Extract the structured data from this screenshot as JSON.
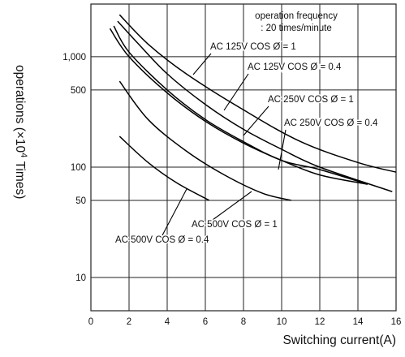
{
  "chart_data": {
    "type": "line",
    "title": "",
    "xlabel": "Switching current(A)",
    "ylabel_main": "operations (×10",
    "ylabel_exp": "4",
    "ylabel_tail": " Times)",
    "xlim": [
      0,
      16
    ],
    "ylim": [
      5,
      3000
    ],
    "yscale": "log",
    "x_ticks": [
      0,
      2,
      4,
      6,
      8,
      10,
      12,
      14,
      16
    ],
    "x_tick_labels": [
      "0",
      "2",
      "4",
      "6",
      "8",
      "10",
      "12",
      "14",
      "16"
    ],
    "y_ticks": [
      10,
      50,
      100,
      500,
      1000
    ],
    "y_tick_labels": [
      "10",
      "50",
      "100",
      "500",
      "1,000"
    ],
    "grid": true,
    "annotation": {
      "lines": [
        "operation frequency",
        ": 20 times/minute"
      ]
    },
    "series": [
      {
        "name": "AC 125V COS Ø = 1",
        "x": [
          1.5,
          3,
          5,
          8,
          11,
          14,
          16
        ],
        "y": [
          2400,
          1300,
          700,
          330,
          170,
          110,
          90
        ]
      },
      {
        "name": "AC 125V COS Ø = 0.4",
        "x": [
          1.4,
          2.5,
          4,
          6,
          8,
          10,
          12,
          15.8
        ],
        "y": [
          2100,
          1300,
          700,
          370,
          220,
          145,
          100,
          60
        ]
      },
      {
        "name": "AC 250V COS Ø = 1",
        "x": [
          1,
          2,
          4,
          6,
          8,
          10,
          12,
          14.5
        ],
        "y": [
          1800,
          1000,
          470,
          260,
          165,
          115,
          85,
          70
        ]
      },
      {
        "name": "AC 250V COS Ø = 0.4",
        "x": [
          1.2,
          2,
          4,
          6,
          8,
          10,
          12,
          14.5
        ],
        "y": [
          1900,
          1100,
          500,
          270,
          170,
          115,
          95,
          70
        ]
      },
      {
        "name": "AC 500V COS Ø = 1",
        "x": [
          1.5,
          3,
          5,
          7,
          9,
          10.5
        ],
        "y": [
          600,
          270,
          140,
          85,
          58,
          50
        ]
      },
      {
        "name": "AC 500V COS Ø = 0.4",
        "x": [
          1.5,
          3,
          4.5,
          6.2
        ],
        "y": [
          190,
          110,
          72,
          50
        ]
      }
    ],
    "series_labels": [
      {
        "text": "AC 125V COS Ø = 1"
      },
      {
        "text": "AC 125V COS Ø = 0.4"
      },
      {
        "text": "AC 250V COS Ø = 1"
      },
      {
        "text": "AC 250V COS Ø = 0.4"
      },
      {
        "text": "AC 500V COS Ø = 1"
      },
      {
        "text": "AC 500V COS Ø = 0.4"
      }
    ]
  }
}
